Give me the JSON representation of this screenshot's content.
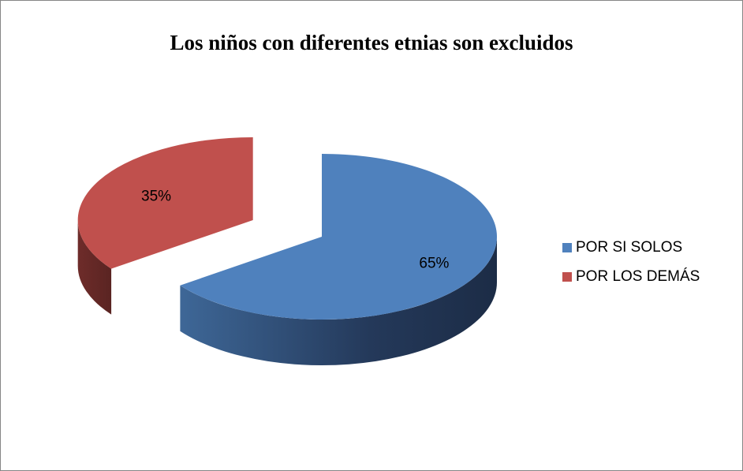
{
  "chart_data": {
    "type": "pie",
    "title": "Los niños con diferentes etnias son excluidos",
    "categories": [
      "POR SI SOLOS",
      "POR LOS DEMÁS"
    ],
    "values": [
      65,
      35
    ],
    "value_labels": [
      "65%",
      "35%"
    ],
    "colors": [
      "#4f81bd",
      "#c0504d"
    ],
    "legend": "right"
  }
}
